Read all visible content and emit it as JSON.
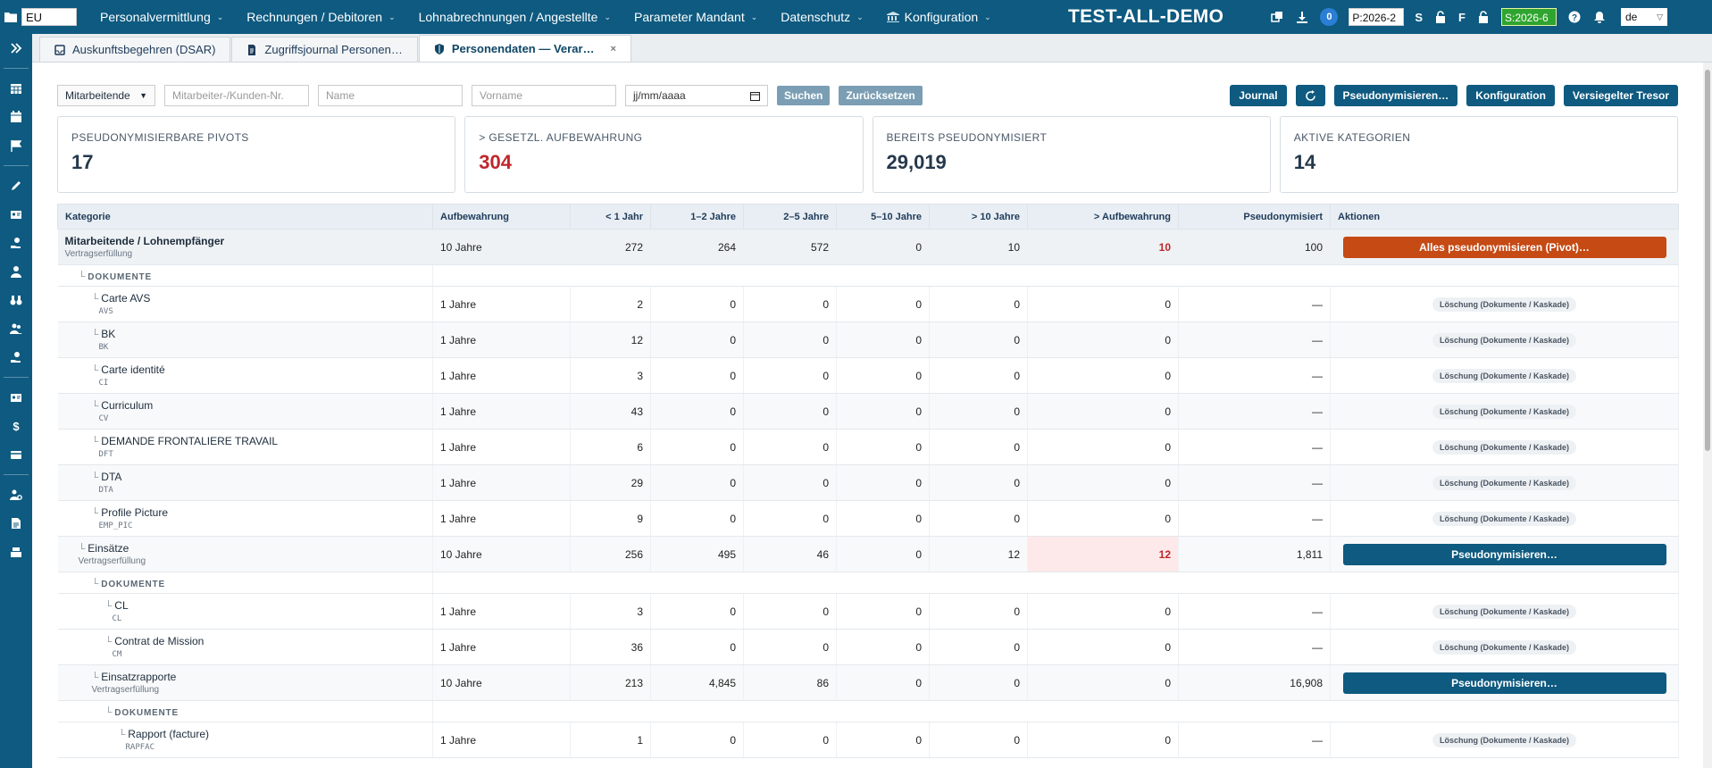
{
  "topbar": {
    "client_value": "EU",
    "menu": [
      {
        "label": "Personalvermittlung",
        "icon": ""
      },
      {
        "label": "Rechnungen / Debitoren",
        "icon": ""
      },
      {
        "label": "Lohnabrechnungen / Angestellte",
        "icon": ""
      },
      {
        "label": "Parameter Mandant",
        "icon": ""
      },
      {
        "label": "Datenschutz",
        "icon": ""
      },
      {
        "label": "Konfiguration",
        "icon": "bank-icon"
      }
    ],
    "title": "TEST-ALL-DEMO",
    "notification_count": "0",
    "period_value": "P:2026-2",
    "letter_s": "S",
    "letter_f": "F",
    "salary_period": "S:2026-6",
    "language": "de"
  },
  "tabs": [
    {
      "label": "Auskunftsbegehren (DSAR)",
      "icon": "inbox-icon"
    },
    {
      "label": "Zugriffsjournal Personen…",
      "icon": "file-list-icon"
    },
    {
      "label": "Personendaten — Verar…",
      "icon": "shield-icon",
      "close": "×"
    }
  ],
  "filter": {
    "type_select": "Mitarbeitende",
    "number_placeholder": "Mitarbeiter-/Kunden-Nr.",
    "name_placeholder": "Name",
    "firstname_placeholder": "Vorname",
    "date_placeholder": "jj/mm/aaaa",
    "search_label": "Suchen",
    "reset_label": "Zurücksetzen",
    "journal_label": "Journal",
    "pseudonymize_label": "Pseudonymisieren…",
    "config_label": "Konfiguration",
    "vault_label": "Versiegelter Tresor"
  },
  "cards": [
    {
      "label": "Pseudonymisierbare Pivots",
      "value": "17"
    },
    {
      "label": "> Gesetzl. Aufbewahrung",
      "value": "304"
    },
    {
      "label": "Bereits pseudonymisiert",
      "value": "29,019"
    },
    {
      "label": "Aktive Kategorien",
      "value": "14"
    }
  ],
  "table": {
    "headers": [
      "Kategorie",
      "Aufbewahrung",
      "< 1 Jahr",
      "1–2 Jahre",
      "2–5 Jahre",
      "5–10 Jahre",
      "> 10 Jahre",
      "> Aufbewahrung",
      "Pseudonymisiert",
      "Aktionen"
    ],
    "doc_label": "DOKUMENTE",
    "doc_action": "Löschung (Dokumente / Kaskade)",
    "rows": [
      {
        "name": "Mitarbeitende / Lohnempfänger",
        "sub": "Vertragserfüllung",
        "ret": "10 Jahre",
        "v": [
          "272",
          "264",
          "572",
          "0",
          "10",
          "10"
        ],
        "pseudo": "100",
        "action": "Alles pseudonymisieren (Pivot)…"
      },
      {
        "name": "Carte AVS",
        "code": "AVS",
        "ret": "1 Jahre",
        "v": [
          "2",
          "0",
          "0",
          "0",
          "0",
          "0"
        ],
        "pseudo": "—"
      },
      {
        "name": "BK",
        "code": "BK",
        "ret": "1 Jahre",
        "v": [
          "12",
          "0",
          "0",
          "0",
          "0",
          "0"
        ],
        "pseudo": "—"
      },
      {
        "name": "Carte identité",
        "code": "CI",
        "ret": "1 Jahre",
        "v": [
          "3",
          "0",
          "0",
          "0",
          "0",
          "0"
        ],
        "pseudo": "—"
      },
      {
        "name": "Curriculum",
        "code": "CV",
        "ret": "1 Jahre",
        "v": [
          "43",
          "0",
          "0",
          "0",
          "0",
          "0"
        ],
        "pseudo": "—"
      },
      {
        "name": "DEMANDE FRONTALIERE TRAVAIL",
        "code": "DFT",
        "ret": "1 Jahre",
        "v": [
          "6",
          "0",
          "0",
          "0",
          "0",
          "0"
        ],
        "pseudo": "—"
      },
      {
        "name": "DTA",
        "code": "DTA",
        "ret": "1 Jahre",
        "v": [
          "29",
          "0",
          "0",
          "0",
          "0",
          "0"
        ],
        "pseudo": "—"
      },
      {
        "name": "Profile Picture",
        "code": "EMP_PIC",
        "ret": "1 Jahre",
        "v": [
          "9",
          "0",
          "0",
          "0",
          "0",
          "0"
        ],
        "pseudo": "—"
      },
      {
        "name": "Einsätze",
        "sub": "Vertragserfüllung",
        "ret": "10 Jahre",
        "v": [
          "256",
          "495",
          "46",
          "0",
          "12",
          "12"
        ],
        "pseudo": "1,811",
        "action": "Pseudonymisieren…"
      },
      {
        "name": "CL",
        "code": "CL",
        "ret": "1 Jahre",
        "v": [
          "3",
          "0",
          "0",
          "0",
          "0",
          "0"
        ],
        "pseudo": "—"
      },
      {
        "name": "Contrat de Mission",
        "code": "CM",
        "ret": "1 Jahre",
        "v": [
          "36",
          "0",
          "0",
          "0",
          "0",
          "0"
        ],
        "pseudo": "—"
      },
      {
        "name": "Einsatzrapporte",
        "sub": "Vertragserfüllung",
        "ret": "10 Jahre",
        "v": [
          "213",
          "4,845",
          "86",
          "0",
          "0",
          "0"
        ],
        "pseudo": "16,908",
        "action": "Pseudonymisieren…"
      },
      {
        "name": "Rapport (facture)",
        "code": "RAPFAC",
        "ret": "1 Jahre",
        "v": [
          "1",
          "0",
          "0",
          "0",
          "0",
          "0"
        ],
        "pseudo": "—"
      }
    ]
  },
  "colors": {
    "primary": "#0e5a80",
    "danger": "#c0262c",
    "pivot_action": "#c54a14",
    "salary_period": "#2fa52f"
  }
}
